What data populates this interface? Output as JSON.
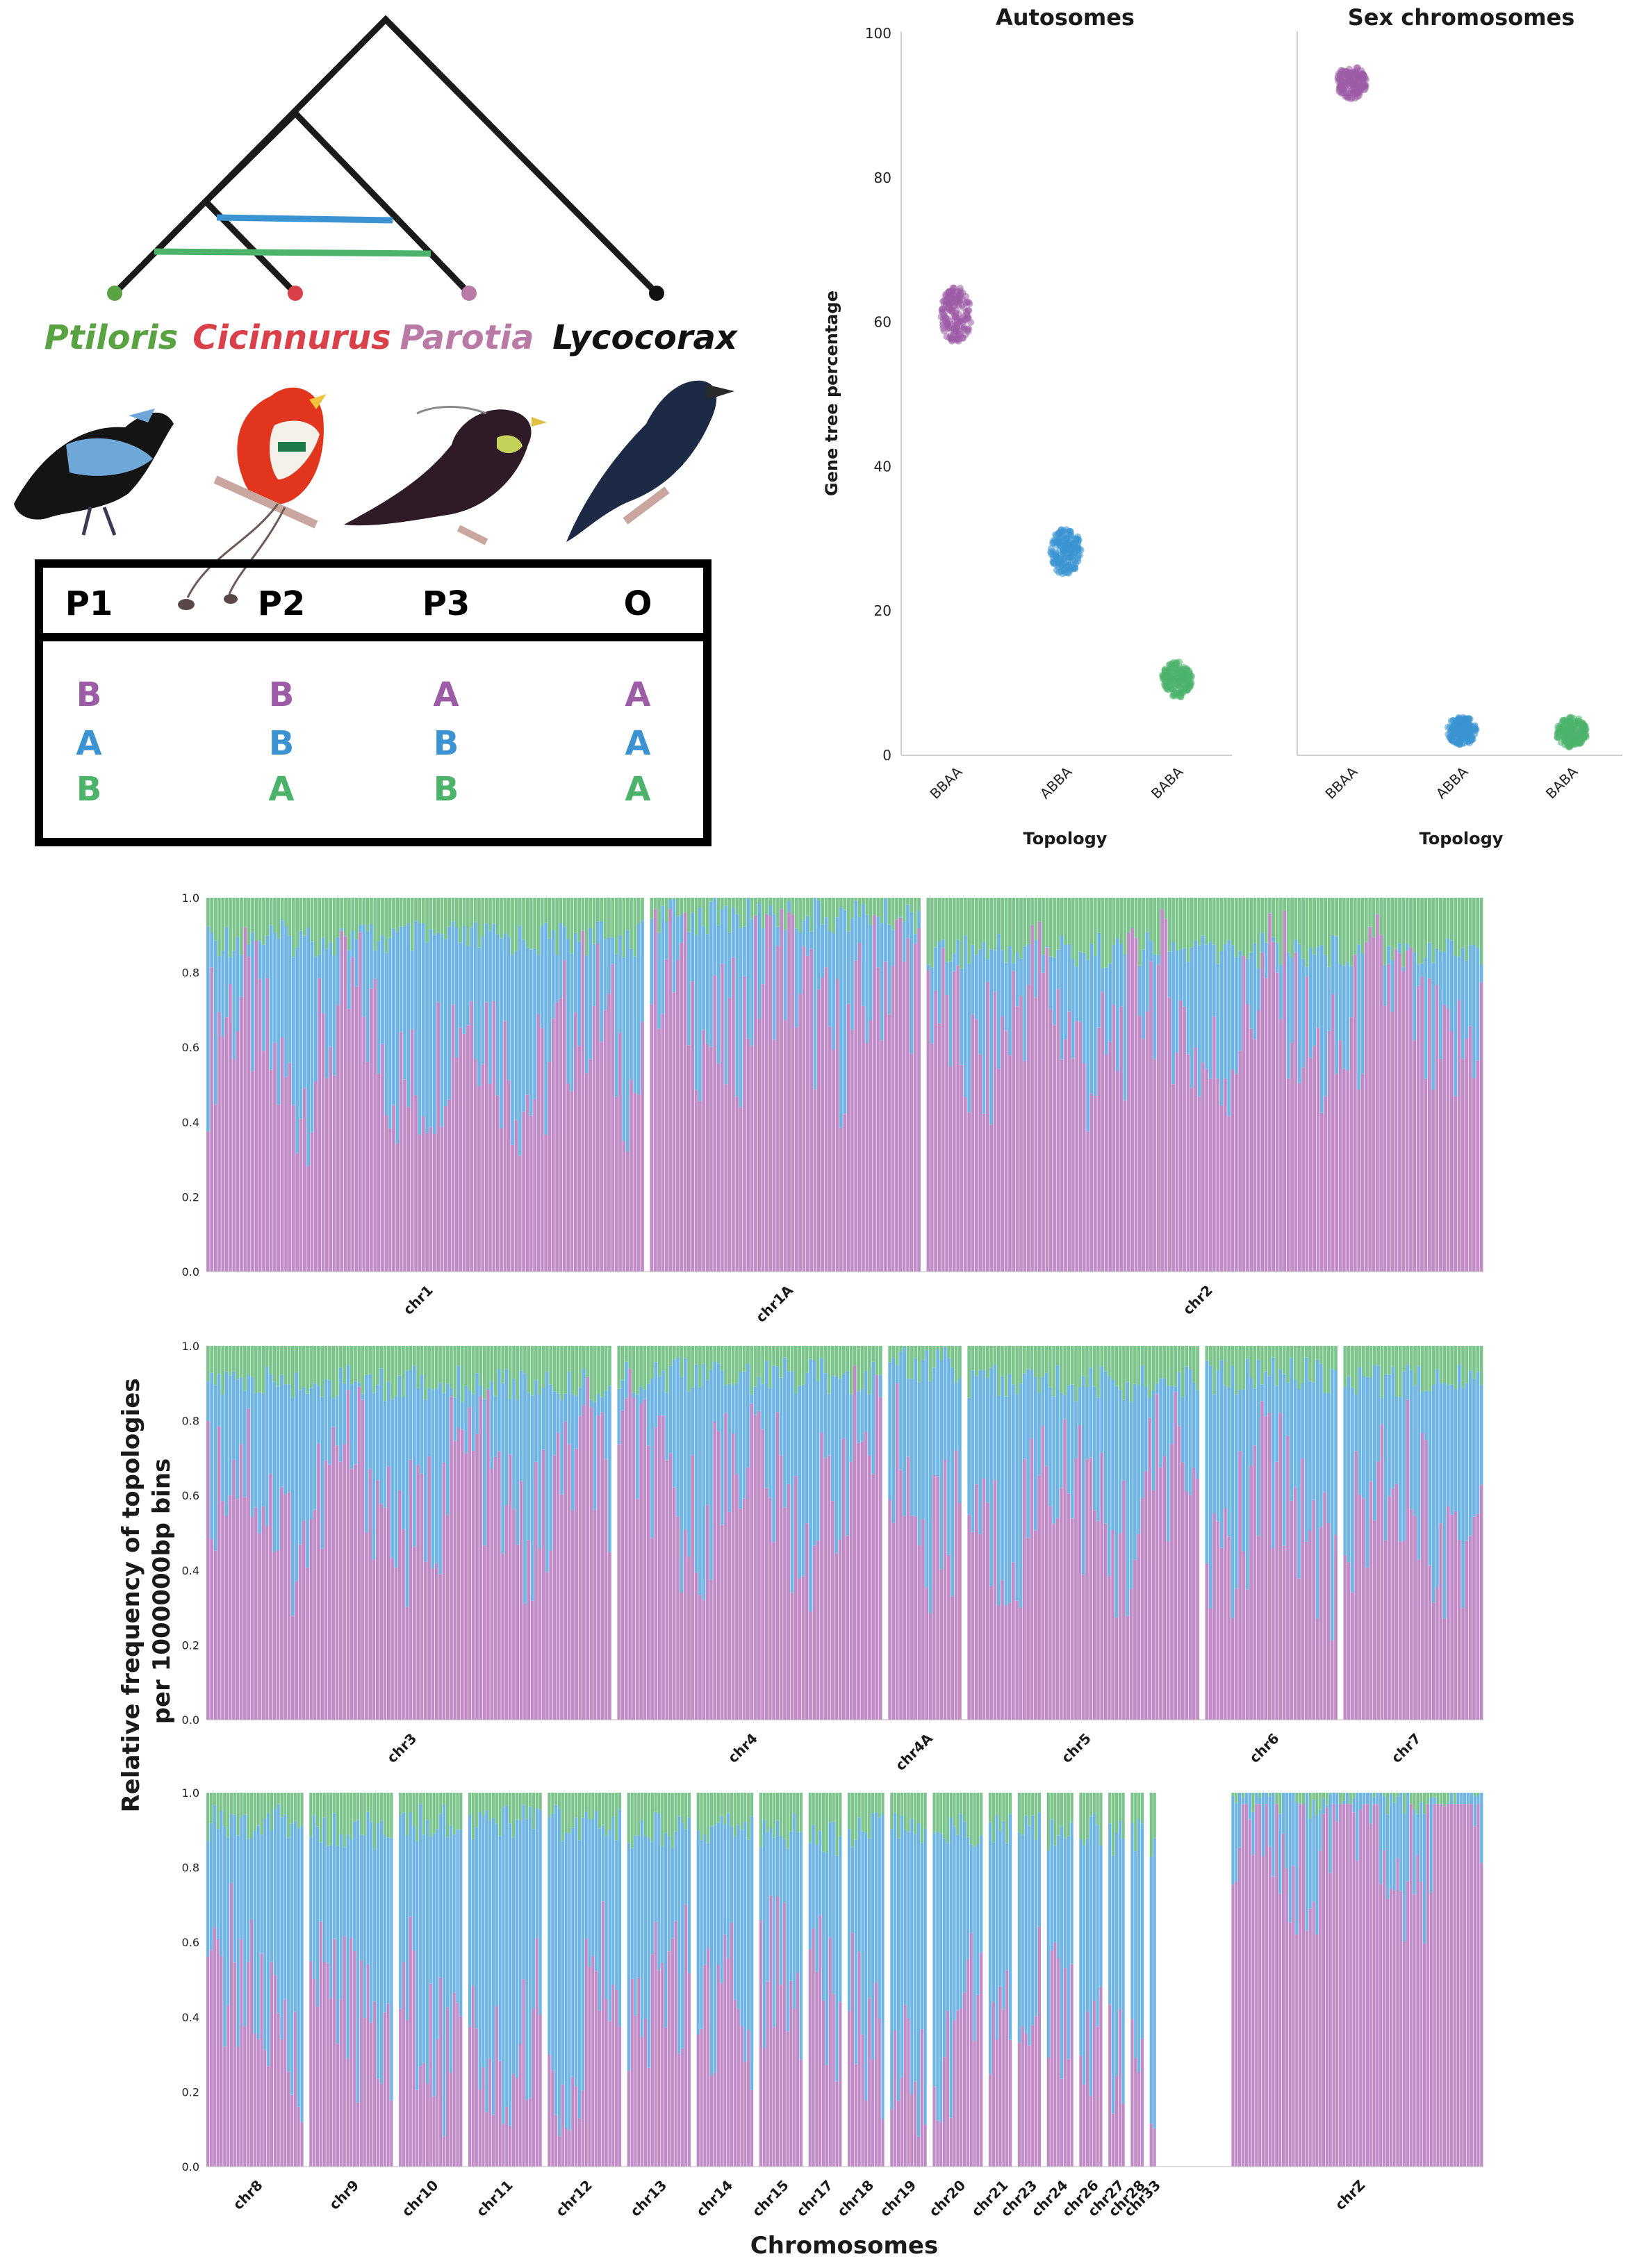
{
  "colors": {
    "purple": "#9c5ca6",
    "blue": "#3b94d1",
    "green": "#4db36b",
    "red": "#d9404a",
    "ptiloris": "#5aa343",
    "parotia": "#b97aa6",
    "black": "#111111",
    "stack_purple": "#c08bc6",
    "stack_blue": "#6eb5e6",
    "stack_green": "#7cc48c"
  },
  "tree": {
    "species": [
      "Ptiloris",
      "Cicinnurus",
      "Parotia",
      "Lycocorax"
    ]
  },
  "table": {
    "header": [
      "P1",
      "P2",
      "P3",
      "O"
    ],
    "rows": [
      {
        "cells": [
          "B",
          "B",
          "A",
          "A"
        ],
        "color": "#9c5ca6"
      },
      {
        "cells": [
          "A",
          "B",
          "B",
          "A"
        ],
        "color": "#3b94d1"
      },
      {
        "cells": [
          "B",
          "A",
          "B",
          "A"
        ],
        "color": "#4db36b"
      }
    ]
  },
  "chart_data": [
    {
      "type": "scatter",
      "title": "Autosomes",
      "ylabel": "Gene tree percentage",
      "xlabel": "Topology",
      "categories": [
        "BBAA",
        "ABBA",
        "BABA"
      ],
      "values": [
        61,
        28.2,
        10.5
      ],
      "ylim": [
        0,
        100
      ],
      "yticks": [
        0,
        20,
        40,
        60,
        80,
        100
      ]
    },
    {
      "type": "scatter",
      "title": "Sex chromosomes",
      "ylabel": "",
      "xlabel": "Topology",
      "categories": [
        "BBAA",
        "ABBA",
        "BABA"
      ],
      "values": [
        93.2,
        3.4,
        3.2
      ],
      "ylim": [
        0,
        100
      ]
    },
    {
      "type": "bar",
      "stacked": true,
      "ylabel": "Relative frequency of topologies per 1000000bp bins",
      "xlabel": "Chromosomes",
      "series": [
        {
          "name": "",
          "note": "BBAA"
        },
        {
          "name": "",
          "note": "ABBA"
        },
        {
          "name": "",
          "note": "BABA"
        }
      ],
      "yticks": [
        "0.0",
        "0.2",
        "0.4",
        "0.6",
        "0.8",
        "1.0"
      ],
      "rows": [
        {
          "chromosomes": [
            {
              "name": "chr1",
              "bins": 118,
              "purple_mean": 0.6,
              "green_mean": 0.11
            },
            {
              "name": "chr1A",
              "bins": 73,
              "purple_mean": 0.72,
              "green_mean": 0.05
            },
            {
              "name": "chr2",
              "bins": 150,
              "purple_mean": 0.66,
              "green_mean": 0.14
            }
          ]
        },
        {
          "chromosomes": [
            {
              "name": "chr3",
              "bins": 110,
              "purple_mean": 0.6,
              "green_mean": 0.1
            },
            {
              "name": "chr4",
              "bins": 72,
              "purple_mean": 0.62,
              "green_mean": 0.08
            },
            {
              "name": "chr4A",
              "bins": 20,
              "purple_mean": 0.6,
              "green_mean": 0.05
            },
            {
              "name": "chr5",
              "bins": 63,
              "purple_mean": 0.58,
              "green_mean": 0.1
            },
            {
              "name": "chr6",
              "bins": 36,
              "purple_mean": 0.55,
              "green_mean": 0.08
            },
            {
              "name": "chr7",
              "bins": 38,
              "purple_mean": 0.58,
              "green_mean": 0.1
            }
          ]
        },
        {
          "chromosomes": [
            {
              "name": "chr8",
              "bins": 29,
              "purple_mean": 0.42,
              "green_mean": 0.08
            },
            {
              "name": "chr9",
              "bins": 25,
              "purple_mean": 0.45,
              "green_mean": 0.1
            },
            {
              "name": "chr10",
              "bins": 19,
              "purple_mean": 0.4,
              "green_mean": 0.08
            },
            {
              "name": "chr11",
              "bins": 22,
              "purple_mean": 0.35,
              "green_mean": 0.08
            },
            {
              "name": "chr12",
              "bins": 22,
              "purple_mean": 0.4,
              "green_mean": 0.08
            },
            {
              "name": "chr13",
              "bins": 19,
              "purple_mean": 0.4,
              "green_mean": 0.1
            },
            {
              "name": "chr14",
              "bins": 17,
              "purple_mean": 0.38,
              "green_mean": 0.1
            },
            {
              "name": "chr15",
              "bins": 13,
              "purple_mean": 0.4,
              "green_mean": 0.1
            },
            {
              "name": "chr17",
              "bins": 10,
              "purple_mean": 0.4,
              "green_mean": 0.12
            },
            {
              "name": "chr18",
              "bins": 11,
              "purple_mean": 0.4,
              "green_mean": 0.1
            },
            {
              "name": "chr19",
              "bins": 11,
              "purple_mean": 0.35,
              "green_mean": 0.1
            },
            {
              "name": "chr20",
              "bins": 15,
              "purple_mean": 0.4,
              "green_mean": 0.1
            },
            {
              "name": "chr21",
              "bins": 7,
              "purple_mean": 0.4,
              "green_mean": 0.1
            },
            {
              "name": "chr23",
              "bins": 7,
              "purple_mean": 0.4,
              "green_mean": 0.1
            },
            {
              "name": "chr24",
              "bins": 8,
              "purple_mean": 0.35,
              "green_mean": 0.12
            },
            {
              "name": "chr26",
              "bins": 7,
              "purple_mean": 0.35,
              "green_mean": 0.1
            },
            {
              "name": "chr27",
              "bins": 5,
              "purple_mean": 0.35,
              "green_mean": 0.12
            },
            {
              "name": "chr28",
              "bins": 4,
              "purple_mean": 0.4,
              "green_mean": 0.12
            },
            {
              "name": "chr33",
              "bins": 2,
              "purple_mean": 0.4,
              "green_mean": 0.15
            },
            {
              "name": "chrZ",
              "bins": 75,
              "purple_mean": 0.92,
              "green_mean": 0.02
            }
          ]
        }
      ]
    }
  ]
}
